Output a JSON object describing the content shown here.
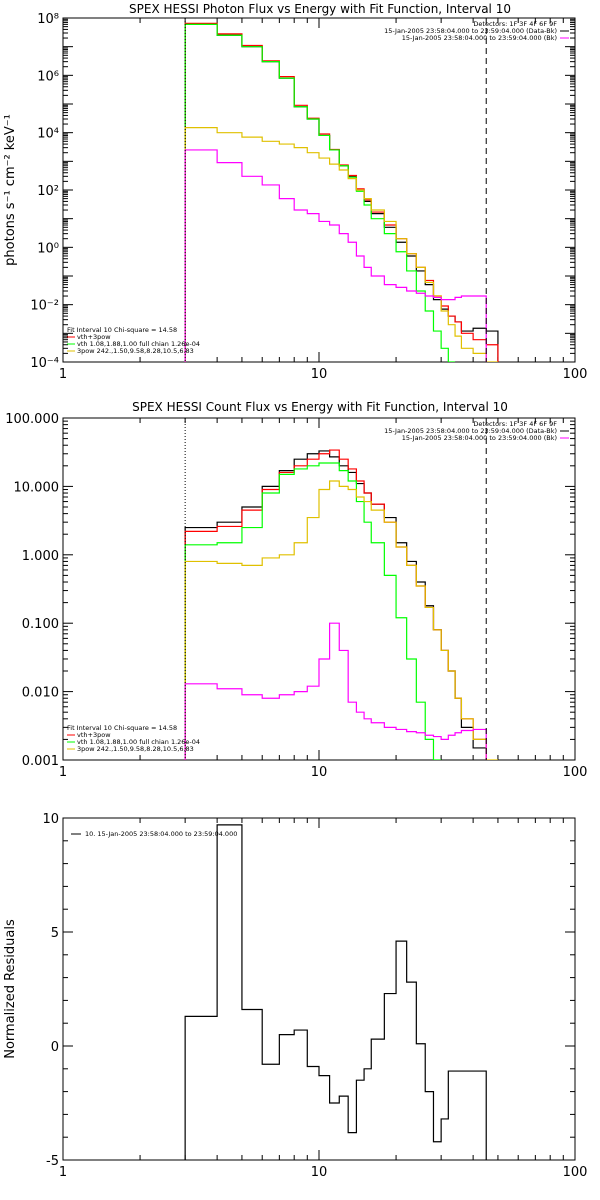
{
  "chart_data": [
    {
      "type": "line",
      "id": "photon",
      "title": "SPEX HESSI Photon Flux vs Energy with Fit Function, Interval 10",
      "xlabel": "",
      "ylabel": "photons s⁻¹ cm⁻² keV⁻¹",
      "xscale": "log",
      "yscale": "log",
      "xlim": [
        1,
        100
      ],
      "ylim": [
        0.0001,
        100000000
      ],
      "xticks": [
        {
          "v": 1,
          "label": "1"
        },
        {
          "v": 10,
          "label": "10"
        },
        {
          "v": 100,
          "label": "100"
        }
      ],
      "yticks": [
        {
          "v": 0.0001,
          "label": "10⁻⁴"
        },
        {
          "v": 0.01,
          "label": "10⁻²"
        },
        {
          "v": 1,
          "label": "10⁰"
        },
        {
          "v": 100,
          "label": "10²"
        },
        {
          "v": 10000,
          "label": "10⁴"
        },
        {
          "v": 1000000,
          "label": "10⁶"
        },
        {
          "v": 100000000,
          "label": "10⁸"
        }
      ],
      "vlines": [
        {
          "x": 3.0,
          "style": "dotted",
          "color": "#000000"
        },
        {
          "x": 45,
          "style": "dashed",
          "color": "#000000"
        }
      ],
      "legend_top": [
        "Detectors: 1F 3F 4F 6F 9F",
        "15-Jan-2005 23:58:04.000 to 23:59:04.000 (Data-Bk)",
        "15-Jan-2005 23:58:04.000 to 23:59:04.000 (Bk)"
      ],
      "legend_bottom": [
        "Fit Interval 10   Chi-square = 14.58",
        "vth+3pow",
        "vth 1.08,1.88,1.00   full chian 1.26e-04",
        "3pow 242.,1.50,9.58,8.28,10.5,6.83"
      ],
      "edges": [
        3,
        3.5,
        4,
        4.5,
        5,
        6,
        7,
        8,
        9,
        10,
        11,
        12,
        13,
        14,
        15,
        16,
        18,
        20,
        22,
        24,
        26,
        28,
        30,
        32,
        34,
        36,
        40,
        45,
        50,
        56,
        63,
        71,
        80
      ],
      "series": [
        {
          "name": "Data-Bk",
          "color": "#000000",
          "values": [
            60000000,
            60000000,
            25000000,
            25000000,
            10000000,
            3000000,
            800000,
            80000,
            30000,
            8000,
            2500,
            700,
            300,
            100,
            40,
            15,
            5,
            1.5,
            0.5,
            0.15,
            0.05,
            0.015,
            0.007,
            0.004,
            0.0025,
            0.0012,
            0.0015,
            0.0012,
            null,
            null,
            null,
            null
          ]
        },
        {
          "name": "vth+3pow",
          "color": "#ff0000",
          "values": [
            65000000,
            65000000,
            28000000,
            28000000,
            11000000,
            3200000,
            900000,
            90000,
            32000,
            9000,
            2600,
            750,
            320,
            110,
            45,
            17,
            6,
            2,
            0.6,
            0.2,
            0.07,
            0.02,
            0.009,
            0.004,
            0.0025,
            0.001,
            0.0006,
            0.0004,
            null,
            null,
            null,
            null
          ]
        },
        {
          "name": "vth",
          "color": "#00ff00",
          "values": [
            60000000,
            60000000,
            25000000,
            25000000,
            10000000,
            3000000,
            800000,
            80000,
            30000,
            8000,
            2500,
            700,
            280,
            90,
            30,
            10,
            3,
            0.7,
            0.15,
            0.03,
            0.006,
            0.0012,
            0.0003,
            0.0001,
            null,
            null,
            null,
            null,
            null,
            null,
            null,
            null
          ]
        },
        {
          "name": "3pow",
          "color": "#e0c000",
          "values": [
            15000,
            15000,
            10000,
            10000,
            7000,
            5000,
            4000,
            3000,
            2000,
            1300,
            800,
            500,
            250,
            100,
            50,
            20,
            8,
            2,
            0.6,
            0.2,
            0.06,
            0.02,
            0.006,
            0.002,
            0.0008,
            0.0003,
            0.0002,
            0.0001,
            null,
            null,
            null,
            null
          ]
        },
        {
          "name": "Bk",
          "color": "#ff00ff",
          "values": [
            2500,
            2500,
            900,
            900,
            300,
            150,
            50,
            20,
            15,
            8,
            6,
            3,
            1.5,
            0.5,
            0.2,
            0.1,
            0.05,
            0.04,
            0.03,
            0.025,
            0.02,
            0.018,
            0.015,
            0.015,
            0.018,
            0.02,
            0.02,
            null,
            null,
            null,
            null,
            null
          ]
        }
      ]
    },
    {
      "type": "line",
      "id": "count",
      "title": "SPEX HESSI Count Flux vs Energy with Fit Function, Interval 10",
      "xlabel": "",
      "ylabel": "",
      "xscale": "log",
      "yscale": "log",
      "xlim": [
        1,
        100
      ],
      "ylim": [
        0.001,
        100
      ],
      "xticks": [
        {
          "v": 1,
          "label": "1"
        },
        {
          "v": 10,
          "label": "10"
        },
        {
          "v": 100,
          "label": "100"
        }
      ],
      "yticks": [
        {
          "v": 0.001,
          "label": "0.001"
        },
        {
          "v": 0.01,
          "label": "0.010"
        },
        {
          "v": 0.1,
          "label": "0.100"
        },
        {
          "v": 1,
          "label": "1.000"
        },
        {
          "v": 10,
          "label": "10.000"
        },
        {
          "v": 100,
          "label": "100.000"
        }
      ],
      "vlines": [
        {
          "x": 3.0,
          "style": "dotted",
          "color": "#000000"
        },
        {
          "x": 45,
          "style": "dashed",
          "color": "#000000"
        }
      ],
      "legend_top": [
        "Detectors: 1F 3F 4F 6F 9F",
        "15-Jan-2005 23:58:04.000 to 23:59:04.000 (Data-Bk)",
        "15-Jan-2005 23:58:04.000 to 23:59:04.000 (Bk)"
      ],
      "legend_bottom": [
        "Fit Interval 10   Chi-square = 14.58",
        "vth+3pow",
        "vth 1.08,1.88,1.00   full chian 1.26e-04",
        "3pow 242.,1.50,9.58,8.28,10.5,6.83"
      ],
      "edges": [
        3,
        3.5,
        4,
        4.5,
        5,
        6,
        7,
        8,
        9,
        10,
        11,
        12,
        13,
        14,
        15,
        16,
        18,
        20,
        22,
        24,
        26,
        28,
        30,
        32,
        34,
        36,
        40,
        45,
        50,
        56,
        63,
        71,
        80
      ],
      "series": [
        {
          "name": "Data-Bk",
          "color": "#000000",
          "values": [
            2.5,
            2.5,
            3,
            3,
            5,
            10,
            17,
            25,
            30,
            33,
            27,
            20,
            16,
            11,
            8,
            5.5,
            3.5,
            1.5,
            0.8,
            0.4,
            0.18,
            0.08,
            0.04,
            0.02,
            0.008,
            0.003,
            0.0015,
            null,
            null,
            null,
            null,
            null
          ]
        },
        {
          "name": "vth+3pow",
          "color": "#ff0000",
          "values": [
            2.2,
            2.2,
            2.6,
            2.6,
            4.5,
            9,
            16,
            20,
            25,
            30,
            34,
            25,
            18,
            12,
            8,
            5.5,
            3,
            1.3,
            0.7,
            0.35,
            0.17,
            0.08,
            0.04,
            0.02,
            0.008,
            0.004,
            0.002,
            null,
            null,
            null,
            null,
            null
          ]
        },
        {
          "name": "vth",
          "color": "#00ff00",
          "values": [
            1.4,
            1.4,
            1.5,
            1.5,
            2.5,
            8,
            15,
            18,
            20,
            22,
            22,
            17,
            12,
            6,
            3,
            1.5,
            0.5,
            0.12,
            0.03,
            0.007,
            0.002,
            0.0008,
            null,
            null,
            null,
            null,
            null,
            null,
            null,
            null,
            null,
            null
          ]
        },
        {
          "name": "3pow",
          "color": "#e0c000",
          "values": [
            0.8,
            0.8,
            0.75,
            0.75,
            0.7,
            0.9,
            1.0,
            1.5,
            3.5,
            9,
            12,
            10,
            9,
            7,
            6,
            4.5,
            3,
            1.3,
            0.7,
            0.35,
            0.17,
            0.08,
            0.04,
            0.02,
            0.008,
            0.004,
            0.002,
            0.001,
            null,
            null,
            null,
            null
          ]
        },
        {
          "name": "Bk",
          "color": "#ff00ff",
          "values": [
            0.013,
            0.013,
            0.011,
            0.011,
            0.009,
            0.008,
            0.009,
            0.01,
            0.012,
            0.03,
            0.1,
            0.04,
            0.007,
            0.005,
            0.004,
            0.0035,
            0.003,
            0.0028,
            0.0026,
            0.0025,
            0.0023,
            0.0022,
            0.002,
            0.0023,
            0.0025,
            0.0027,
            0.0028,
            null,
            null,
            null,
            null,
            null
          ]
        }
      ]
    },
    {
      "type": "line",
      "id": "resid",
      "title": "",
      "xlabel": "",
      "ylabel": "Normalized Residuals",
      "xscale": "log",
      "yscale": "linear",
      "xlim": [
        1,
        100
      ],
      "ylim": [
        -5,
        10
      ],
      "xticks": [
        {
          "v": 1,
          "label": "1"
        },
        {
          "v": 10,
          "label": "10"
        },
        {
          "v": 100,
          "label": "100"
        }
      ],
      "yticks": [
        {
          "v": -5,
          "label": "-5"
        },
        {
          "v": 0,
          "label": "0"
        },
        {
          "v": 5,
          "label": "5"
        },
        {
          "v": 10,
          "label": "10"
        }
      ],
      "legend_top": [
        "10. 15-Jan-2005 23:58:04.000 to 23:59:04.000"
      ],
      "edges": [
        3,
        3.5,
        4,
        4.5,
        5,
        6,
        7,
        8,
        9,
        10,
        11,
        12,
        13,
        14,
        15,
        16,
        18,
        20,
        22,
        24,
        26,
        28,
        30,
        32,
        34,
        36,
        40,
        45
      ],
      "series": [
        {
          "name": "10. 15-Jan-2005 23:58:04.000 to 23:59:04.000",
          "color": "#000000",
          "values": [
            1.3,
            1.3,
            9.7,
            9.7,
            1.6,
            -0.8,
            0.5,
            0.7,
            -0.9,
            -1.3,
            -2.5,
            -2.2,
            -3.8,
            -1.5,
            -1.0,
            0.3,
            2.3,
            4.6,
            2.8,
            0.1,
            -2.0,
            -4.2,
            -3.2,
            -1.1,
            -1.1,
            -1.1,
            -1.1
          ]
        }
      ]
    }
  ]
}
